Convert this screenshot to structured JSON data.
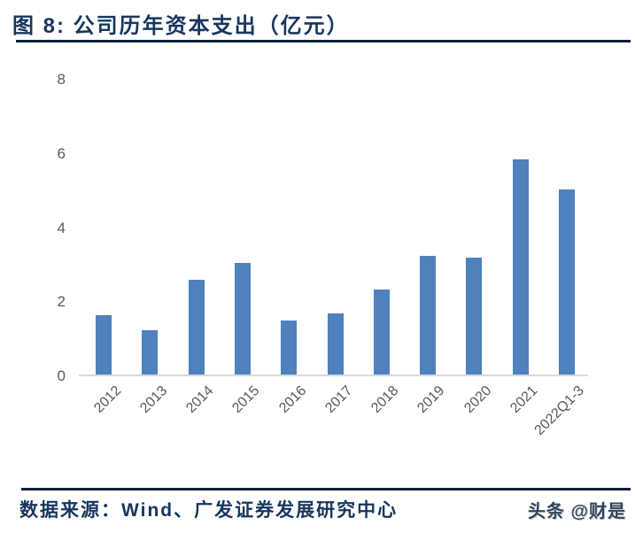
{
  "figure": {
    "title": "图 8:  公司历年资本支出（亿元）",
    "source": "数据来源：Wind、广发证券发展研究中心",
    "watermark": "头条 @财是"
  },
  "colors": {
    "bar": "#4E81BD",
    "title_text": "#17365D",
    "header_rule": "#10203a",
    "footer_rule": "#10203a",
    "axis_label": "#595959",
    "axis_line": "#D9D9D9",
    "source_text": "#17365D"
  },
  "chart_data": {
    "type": "bar",
    "title": "公司历年资本支出（亿元）",
    "categories": [
      "2012",
      "2013",
      "2014",
      "2015",
      "2016",
      "2017",
      "2018",
      "2019",
      "2020",
      "2021",
      "2022Q1-3"
    ],
    "values": [
      1.6,
      1.2,
      2.55,
      3.0,
      1.45,
      1.65,
      2.3,
      3.2,
      3.15,
      5.8,
      5.0
    ],
    "xlabel": "",
    "ylabel": "",
    "ylim": [
      0,
      8
    ],
    "yticks": [
      0,
      2,
      4,
      6,
      8
    ],
    "grid": false,
    "legend": "none",
    "bar_color": "#4E81BD",
    "x_tick_rotation_deg": 45
  }
}
